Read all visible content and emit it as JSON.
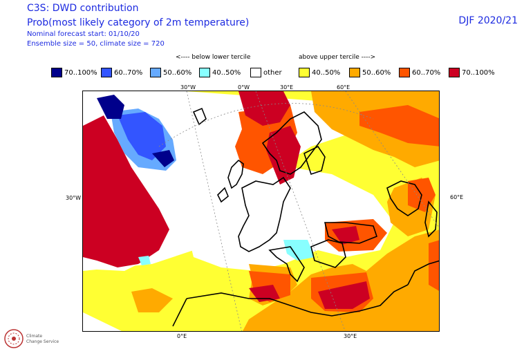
{
  "header": {
    "title_line1": "C3S: DWD contribution",
    "title_line2": "Prob(most likely category of 2m temperature)",
    "meta_line1": "Nominal forecast start: 01/10/20",
    "meta_line2": "Ensemble size = 50, climate size = 720",
    "season": "DJF 2020/21"
  },
  "legend": {
    "below_label": "<---- below lower tercile",
    "above_label": "above upper tercile ---->",
    "items": [
      {
        "label": "70..100%",
        "color": "#00008b"
      },
      {
        "label": "60..70%",
        "color": "#3355ff"
      },
      {
        "label": "50..60%",
        "color": "#66aaff"
      },
      {
        "label": "40..50%",
        "color": "#88ffff"
      },
      {
        "label": "other",
        "color": "#ffffff"
      },
      {
        "label": "40..50%",
        "color": "#ffff33"
      },
      {
        "label": "50..60%",
        "color": "#ffaa00"
      },
      {
        "label": "60..70%",
        "color": "#ff5500"
      },
      {
        "label": "70..100%",
        "color": "#cc0022"
      }
    ]
  },
  "axes": {
    "top": [
      "30°W",
      "0°W",
      "30°E",
      "60°E"
    ],
    "left": "30°W",
    "right": "60°E",
    "bottom": [
      "0°E",
      "30°E"
    ]
  },
  "logo": {
    "line1": "Climate",
    "line2": "Change Service"
  }
}
